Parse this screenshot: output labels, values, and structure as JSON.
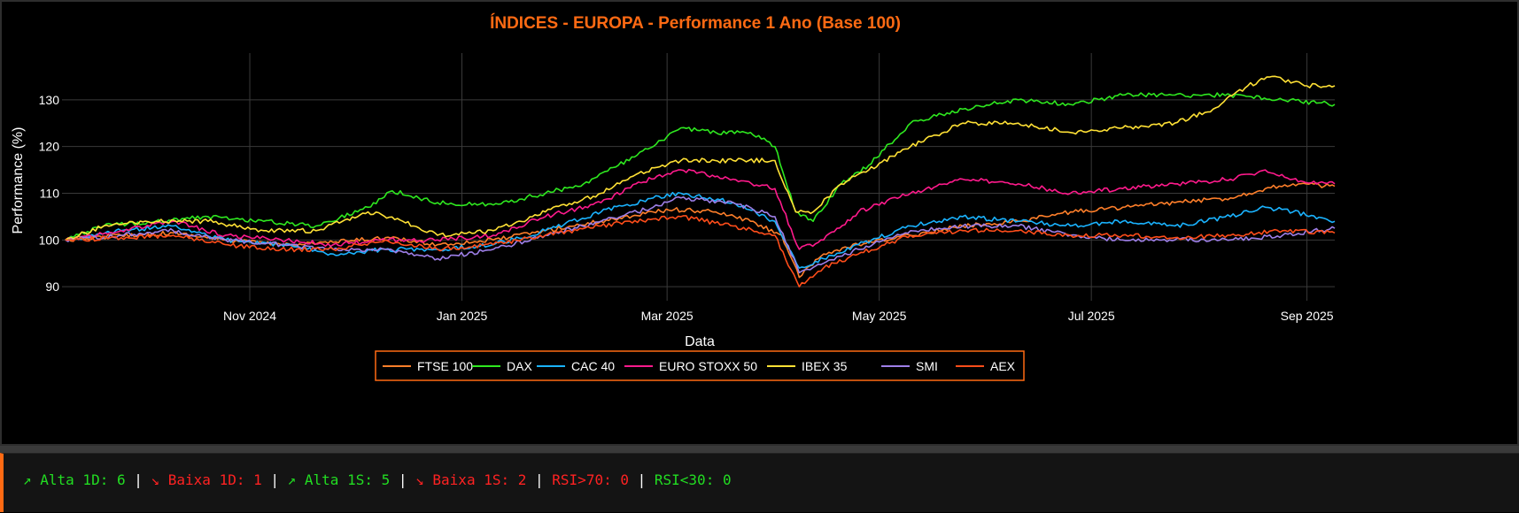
{
  "chart_data": {
    "type": "line",
    "title": "ÍNDICES - EUROPA - Performance 1 Ano (Base 100)",
    "xlabel": "Data",
    "ylabel": "Performance (%)",
    "xlim": [
      "2024-09-08",
      "2025-09-09"
    ],
    "ylim": [
      87,
      140
    ],
    "x_ticks": [
      {
        "date": "2024-11-01",
        "label": "Nov 2024"
      },
      {
        "date": "2025-01-01",
        "label": "Jan 2025"
      },
      {
        "date": "2025-03-01",
        "label": "Mar 2025"
      },
      {
        "date": "2025-05-01",
        "label": "May 2025"
      },
      {
        "date": "2025-07-01",
        "label": "Jul 2025"
      },
      {
        "date": "2025-09-01",
        "label": "Sep 2025"
      }
    ],
    "y_ticks": [
      90,
      100,
      110,
      120,
      130
    ],
    "grid": true,
    "legend_position": "bottom-center",
    "series": [
      {
        "name": "FTSE 100",
        "color": "#ff7f2a",
        "points": [
          [
            "2024-09-09",
            100
          ],
          [
            "2024-09-25",
            101
          ],
          [
            "2024-10-10",
            101.5
          ],
          [
            "2024-10-25",
            100
          ],
          [
            "2024-11-10",
            99
          ],
          [
            "2024-11-25",
            99.5
          ],
          [
            "2024-12-10",
            100.5
          ],
          [
            "2024-12-25",
            99
          ],
          [
            "2025-01-10",
            100
          ],
          [
            "2025-01-25",
            102
          ],
          [
            "2025-02-10",
            104
          ],
          [
            "2025-02-25",
            106
          ],
          [
            "2025-03-03",
            106.5
          ],
          [
            "2025-03-15",
            106
          ],
          [
            "2025-03-25",
            104
          ],
          [
            "2025-04-03",
            101
          ],
          [
            "2025-04-08",
            92
          ],
          [
            "2025-04-15",
            97
          ],
          [
            "2025-04-25",
            99
          ],
          [
            "2025-05-10",
            101
          ],
          [
            "2025-05-25",
            103
          ],
          [
            "2025-06-10",
            104
          ],
          [
            "2025-06-25",
            106
          ],
          [
            "2025-07-10",
            107
          ],
          [
            "2025-07-25",
            108
          ],
          [
            "2025-08-10",
            109
          ],
          [
            "2025-08-20",
            111
          ],
          [
            "2025-08-28",
            112
          ],
          [
            "2025-09-09",
            111.5
          ]
        ]
      },
      {
        "name": "DAX",
        "color": "#2ee81f",
        "points": [
          [
            "2024-09-09",
            100
          ],
          [
            "2024-09-20",
            103
          ],
          [
            "2024-10-05",
            104
          ],
          [
            "2024-10-20",
            105
          ],
          [
            "2024-11-05",
            104
          ],
          [
            "2024-11-20",
            103
          ],
          [
            "2024-12-05",
            107
          ],
          [
            "2024-12-12",
            110.5
          ],
          [
            "2024-12-25",
            108
          ],
          [
            "2025-01-10",
            107.5
          ],
          [
            "2025-01-25",
            110
          ],
          [
            "2025-02-05",
            112
          ],
          [
            "2025-02-15",
            116
          ],
          [
            "2025-02-25",
            120
          ],
          [
            "2025-03-05",
            124
          ],
          [
            "2025-03-15",
            123
          ],
          [
            "2025-03-25",
            123
          ],
          [
            "2025-04-01",
            120
          ],
          [
            "2025-04-07",
            106
          ],
          [
            "2025-04-12",
            104
          ],
          [
            "2025-04-20",
            112
          ],
          [
            "2025-04-28",
            116
          ],
          [
            "2025-05-10",
            125
          ],
          [
            "2025-05-25",
            128
          ],
          [
            "2025-06-10",
            130
          ],
          [
            "2025-06-25",
            129
          ],
          [
            "2025-07-10",
            131
          ],
          [
            "2025-07-25",
            131
          ],
          [
            "2025-08-10",
            131
          ],
          [
            "2025-08-25",
            130
          ],
          [
            "2025-09-09",
            129
          ]
        ]
      },
      {
        "name": "CAC 40",
        "color": "#1ab3ff",
        "points": [
          [
            "2024-09-09",
            100
          ],
          [
            "2024-09-25",
            102
          ],
          [
            "2024-10-10",
            103
          ],
          [
            "2024-10-25",
            100
          ],
          [
            "2024-11-10",
            99
          ],
          [
            "2024-11-25",
            97
          ],
          [
            "2024-12-10",
            98
          ],
          [
            "2024-12-25",
            98
          ],
          [
            "2025-01-10",
            99
          ],
          [
            "2025-01-25",
            102
          ],
          [
            "2025-02-10",
            106
          ],
          [
            "2025-02-25",
            109
          ],
          [
            "2025-03-05",
            110
          ],
          [
            "2025-03-20",
            108
          ],
          [
            "2025-04-01",
            104
          ],
          [
            "2025-04-08",
            94
          ],
          [
            "2025-04-15",
            96
          ],
          [
            "2025-04-25",
            99
          ],
          [
            "2025-05-10",
            103
          ],
          [
            "2025-05-25",
            105
          ],
          [
            "2025-06-10",
            104
          ],
          [
            "2025-06-25",
            103
          ],
          [
            "2025-07-10",
            104
          ],
          [
            "2025-07-25",
            103
          ],
          [
            "2025-08-10",
            105
          ],
          [
            "2025-08-20",
            107
          ],
          [
            "2025-08-28",
            106
          ],
          [
            "2025-09-09",
            104
          ]
        ]
      },
      {
        "name": "EURO STOXX 50",
        "color": "#ff1a8c",
        "points": [
          [
            "2024-09-09",
            100
          ],
          [
            "2024-09-25",
            102
          ],
          [
            "2024-10-10",
            104
          ],
          [
            "2024-10-25",
            101
          ],
          [
            "2024-11-10",
            100
          ],
          [
            "2024-11-25",
            99
          ],
          [
            "2024-12-10",
            100
          ],
          [
            "2024-12-25",
            100
          ],
          [
            "2025-01-10",
            101
          ],
          [
            "2025-01-25",
            105
          ],
          [
            "2025-02-10",
            108
          ],
          [
            "2025-02-20",
            112
          ],
          [
            "2025-03-05",
            115
          ],
          [
            "2025-03-20",
            113
          ],
          [
            "2025-04-01",
            111
          ],
          [
            "2025-04-08",
            98
          ],
          [
            "2025-04-15",
            100
          ],
          [
            "2025-04-25",
            106
          ],
          [
            "2025-05-10",
            110
          ],
          [
            "2025-05-25",
            113
          ],
          [
            "2025-06-10",
            112
          ],
          [
            "2025-06-25",
            110
          ],
          [
            "2025-07-10",
            111
          ],
          [
            "2025-07-25",
            112
          ],
          [
            "2025-08-10",
            113
          ],
          [
            "2025-08-20",
            115
          ],
          [
            "2025-08-28",
            113
          ],
          [
            "2025-09-09",
            112
          ]
        ]
      },
      {
        "name": "IBEX 35",
        "color": "#ffe135",
        "points": [
          [
            "2024-09-09",
            100
          ],
          [
            "2024-09-20",
            103
          ],
          [
            "2024-10-05",
            104
          ],
          [
            "2024-10-20",
            104
          ],
          [
            "2024-11-05",
            102
          ],
          [
            "2024-11-20",
            102
          ],
          [
            "2024-12-05",
            106
          ],
          [
            "2024-12-15",
            104
          ],
          [
            "2024-12-25",
            101
          ],
          [
            "2025-01-10",
            102
          ],
          [
            "2025-01-25",
            106
          ],
          [
            "2025-02-10",
            110
          ],
          [
            "2025-02-20",
            114
          ],
          [
            "2025-03-05",
            117
          ],
          [
            "2025-03-20",
            117
          ],
          [
            "2025-04-01",
            117
          ],
          [
            "2025-04-07",
            106
          ],
          [
            "2025-04-12",
            106
          ],
          [
            "2025-04-20",
            112
          ],
          [
            "2025-04-28",
            115
          ],
          [
            "2025-05-10",
            120
          ],
          [
            "2025-05-25",
            125
          ],
          [
            "2025-06-10",
            125
          ],
          [
            "2025-06-25",
            123
          ],
          [
            "2025-07-10",
            124
          ],
          [
            "2025-07-25",
            125
          ],
          [
            "2025-08-05",
            128
          ],
          [
            "2025-08-15",
            133
          ],
          [
            "2025-08-22",
            135
          ],
          [
            "2025-09-01",
            133
          ],
          [
            "2025-09-09",
            133
          ]
        ]
      },
      {
        "name": "SMI",
        "color": "#9e7fe8",
        "points": [
          [
            "2024-09-09",
            100
          ],
          [
            "2024-09-25",
            101
          ],
          [
            "2024-10-10",
            102
          ],
          [
            "2024-10-25",
            100
          ],
          [
            "2024-11-10",
            99
          ],
          [
            "2024-11-25",
            98
          ],
          [
            "2024-12-10",
            98
          ],
          [
            "2024-12-25",
            96
          ],
          [
            "2025-01-10",
            98
          ],
          [
            "2025-01-25",
            101
          ],
          [
            "2025-02-10",
            104
          ],
          [
            "2025-02-25",
            107
          ],
          [
            "2025-03-05",
            109
          ],
          [
            "2025-03-20",
            108
          ],
          [
            "2025-04-01",
            105
          ],
          [
            "2025-04-08",
            93
          ],
          [
            "2025-04-15",
            95
          ],
          [
            "2025-04-25",
            98
          ],
          [
            "2025-05-10",
            102
          ],
          [
            "2025-05-25",
            103
          ],
          [
            "2025-06-10",
            103
          ],
          [
            "2025-06-25",
            101
          ],
          [
            "2025-07-10",
            100
          ],
          [
            "2025-07-25",
            100
          ],
          [
            "2025-08-10",
            100
          ],
          [
            "2025-08-25",
            101
          ],
          [
            "2025-09-09",
            102.5
          ]
        ]
      },
      {
        "name": "AEX",
        "color": "#ff4d1a",
        "points": [
          [
            "2024-09-09",
            100
          ],
          [
            "2024-09-25",
            100.5
          ],
          [
            "2024-10-10",
            101
          ],
          [
            "2024-10-25",
            99
          ],
          [
            "2024-11-10",
            98
          ],
          [
            "2024-11-25",
            98
          ],
          [
            "2024-12-10",
            100
          ],
          [
            "2024-12-25",
            98
          ],
          [
            "2025-01-10",
            99
          ],
          [
            "2025-01-25",
            101
          ],
          [
            "2025-02-10",
            103
          ],
          [
            "2025-02-25",
            104.5
          ],
          [
            "2025-03-05",
            105
          ],
          [
            "2025-03-20",
            103
          ],
          [
            "2025-04-01",
            101
          ],
          [
            "2025-04-08",
            90
          ],
          [
            "2025-04-15",
            94
          ],
          [
            "2025-04-25",
            97
          ],
          [
            "2025-05-10",
            101
          ],
          [
            "2025-05-25",
            102
          ],
          [
            "2025-06-10",
            102
          ],
          [
            "2025-06-25",
            101
          ],
          [
            "2025-07-10",
            101
          ],
          [
            "2025-07-25",
            100.5
          ],
          [
            "2025-08-10",
            101
          ],
          [
            "2025-08-25",
            102
          ],
          [
            "2025-09-09",
            101.5
          ]
        ]
      }
    ]
  },
  "stats": {
    "alta_1d": "↗ Alta 1D: 6",
    "baixa_1d": "↘ Baixa 1D: 1",
    "alta_1s": "↗ Alta 1S: 5",
    "baixa_1s": "↘ Baixa 1S: 2",
    "rsi_70": "RSI>70: 0",
    "rsi_30": "RSI<30: 0",
    "separator": " | "
  },
  "colors": {
    "title": "#ff6a13",
    "accent": "#ff6a13",
    "up": "#22dd22",
    "down": "#ff2222"
  }
}
